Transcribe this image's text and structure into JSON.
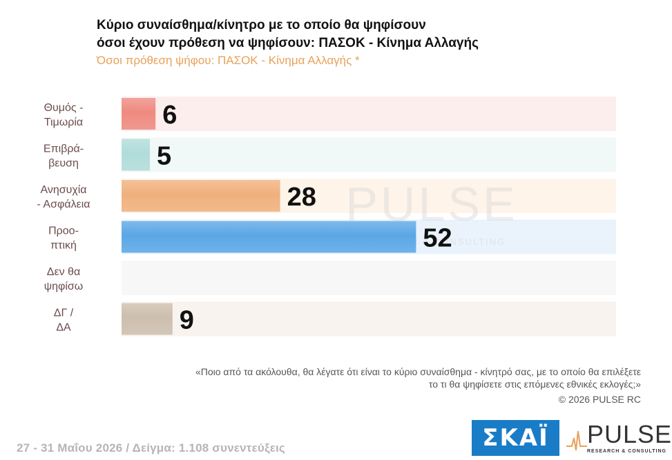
{
  "header": {
    "title_line1": "Κύριο συναίσθημα/κίνητρο με το οποίο θα ψηφίσουν",
    "title_line2": "όσοι έχουν πρόθεση να ψηφίσουν: ΠΑΣΟΚ - Κίνημα Αλλαγής",
    "subtitle": "Όσοι πρόθεση ψήφου: ΠΑΣΟΚ - Κίνημα Αλλαγής *"
  },
  "chart_data": {
    "type": "bar",
    "orientation": "horizontal",
    "categories": [
      [
        "Θυμός -",
        "Τιμωρία"
      ],
      [
        "Επιβρά-",
        "βευση"
      ],
      [
        "Ανησυχία",
        "- Ασφάλεια"
      ],
      [
        "Προο-",
        "πτική"
      ],
      [
        "Δεν θα",
        "ψηφίσω"
      ],
      [
        "ΔΓ /",
        "ΔΑ"
      ]
    ],
    "values": [
      6,
      5,
      28,
      52,
      null,
      9
    ],
    "value_labels": [
      "6",
      "5",
      "28",
      "52",
      "",
      "9"
    ],
    "colors": [
      "#ee8a80",
      "#b0dcd9",
      "#f0b07d",
      "#5aa7e6",
      "#dddddd",
      "#cdbfae"
    ],
    "row_colors": [
      "#fdeeee",
      "#f1f8f8",
      "#fef4ea",
      "#eaf3fc",
      "#f7f7f7",
      "#f8f3ee"
    ],
    "xlim": [
      0,
      100
    ],
    "grid": false,
    "legend": "none"
  },
  "watermark": {
    "word": "PULSE",
    "sub": "RESEARCH & CONSULTING"
  },
  "notes": {
    "question_line1": "«Ποιο από τα ακόλουθα, θα λέγατε ότι είναι το κύριο συναίσθημα - κίνητρό σας, με το οποίο θα επιλέξετε",
    "question_line2": "το τι θα ψηφίσετε στις επόμενες εθνικές εκλογές;»",
    "copyright": "©  2026  PULSE RC"
  },
  "footer": {
    "fieldwork": "27 - 31  Μαΐου 2026  /  Δείγμα:  1.108 συνεντεύξεις"
  },
  "logos": {
    "skai": "ΣΚΑΪ",
    "pulse_word": "PULSE",
    "pulse_sub": "RESEARCH & CONSULTING"
  }
}
